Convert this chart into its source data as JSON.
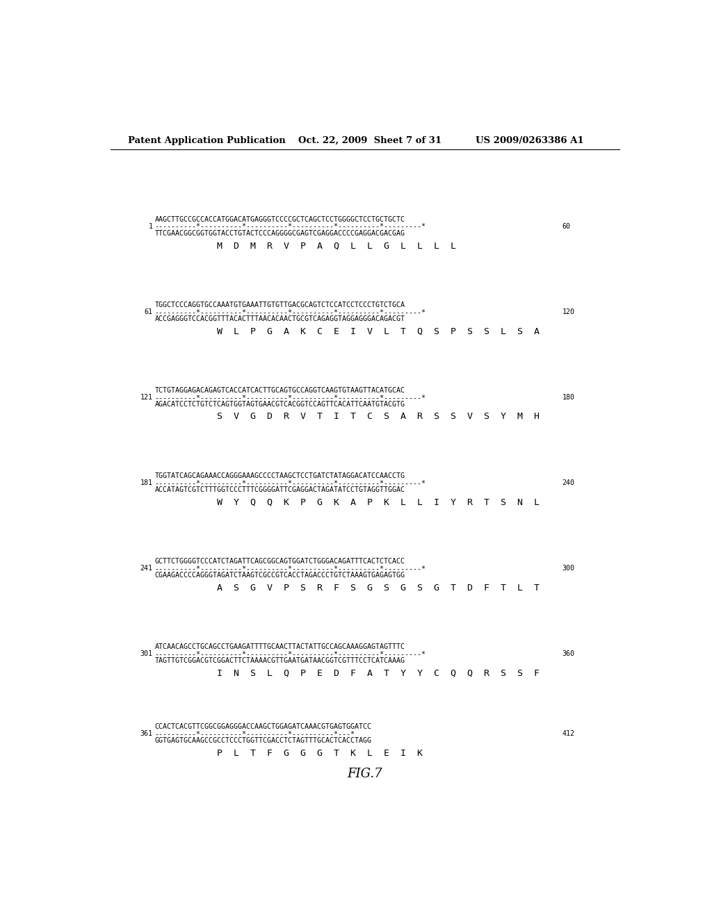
{
  "header_left": "Patent Application Publication",
  "header_mid": "Oct. 22, 2009  Sheet 7 of 31",
  "header_right": "US 2009/0263386 A1",
  "figure_label": "FIG.7",
  "background_color": "#ffffff",
  "text_color": "#000000",
  "blocks": [
    {
      "start_num": "1",
      "end_num": "60",
      "top_seq": "AAGCTTGCCGCCACCATGGACATGAGGGTCCCCGCTCAGCTCCTGGGGCTCCTGCTGCTC",
      "ruler": "----------*----------*----------*----------*----------*---------*",
      "bottom_seq": "TTCGAACGGCGGTGGTACCTGTACTCCCAGGGGCGAGTCGAGGACCCCGAGGACGACGAG",
      "amino": "M  D  M  R  V  P  A  Q  L  L  G  L  L  L  L"
    },
    {
      "start_num": "61",
      "end_num": "120",
      "top_seq": "TGGCTCCCAGGTGCCAAATGTGAAATTGTGTTGACGCAGTCTCCATCCTCCCTGTCTGCA",
      "ruler": "----------*----------*----------*----------*----------*---------*",
      "bottom_seq": "ACCGAGGGTCCACGGTTTACACTTTAACACAACTGCGTCAGAGGTAGGAGGGACAGACGT",
      "amino": "W  L  P  G  A  K  C  E  I  V  L  T  Q  S  P  S  S  L  S  A"
    },
    {
      "start_num": "121",
      "end_num": "180",
      "top_seq": "TCTGTAGGAGACAGAGTCACCATCACTTGCAGTGCCAGGTCAAGTGTAAGTTACATGCAC",
      "ruler": "----------*----------*----------*----------*----------*---------*",
      "bottom_seq": "AGACATCCTCTGTCTCAGTGGTAGTGAACGTCACGGTCCAGTTCACATTCAATGTACGTG",
      "amino": "S  V  G  D  R  V  T  I  T  C  S  A  R  S  S  V  S  Y  M  H"
    },
    {
      "start_num": "181",
      "end_num": "240",
      "top_seq": "TGGTATCAGCAGAAACCAGGGAAAGCCCCTAAGCTCCTGATCTATAGGACATCCAACCTG",
      "ruler": "----------*----------*----------*----------*----------*---------*",
      "bottom_seq": "ACCATAGTCGTCTTTGGTCCCTTTCGGGGATTCGAGGACTAGATATCCTGTAGGTTGGAC",
      "amino": "W  Y  Q  Q  K  P  G  K  A  P  K  L  L  I  Y  R  T  S  N  L"
    },
    {
      "start_num": "241",
      "end_num": "300",
      "top_seq": "GCTTCTGGGGTCCCATCTAGATTCAGCGGCAGTGGATCTGGGACAGATTTCACTCTCACC",
      "ruler": "----------*----------*----------*----------*----------*---------*",
      "bottom_seq": "CGAAGACCCCAGGGTAGATCTAAGTCGCCGTCACCTAGACCCTGTCTAAAGTGAGAGTGG",
      "amino": "A  S  G  V  P  S  R  F  S  G  S  G  S  G  T  D  F  T  L  T"
    },
    {
      "start_num": "301",
      "end_num": "360",
      "top_seq": "ATCAACAGCCTGCAGCCTGAAGATTTTGCAACTTACTATTGCCAGCAAAGGAGTAGTTTC",
      "ruler": "----------*----------*----------*----------*----------*---------*",
      "bottom_seq": "TAGTTGTCGGACGTCGGACTTCTAAAACGTTGAATGATAACGGTCGTTTCCTCATCAAAG",
      "amino": "I  N  S  L  Q  P  E  D  F  A  T  Y  Y  C  Q  Q  R  S  S  F"
    },
    {
      "start_num": "361",
      "end_num": "412",
      "top_seq": "CCACTCACGTTCGGCGGAGGGACCAAGCTGGAGATCAAACGTGAGTGGATCC",
      "ruler": "----------*----------*----------*----------*---*",
      "bottom_seq": "GGTGAGTGCAAGCCGCCTCCCTGGTTCGACCTCTAGTTTGCACTCACCTAGG",
      "amino": "P  L  T  F  G  G  G  T  K  L  E  I  K"
    }
  ]
}
